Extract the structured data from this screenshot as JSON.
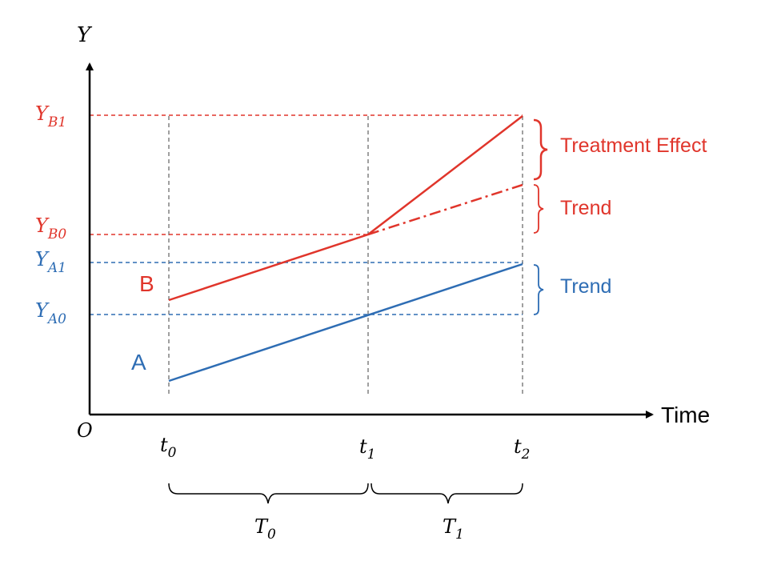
{
  "colors": {
    "group_a": "#2e6db4",
    "group_b": "#e0352b",
    "axis": "#000000",
    "guide": "#808080"
  },
  "axes": {
    "y_label": "Y",
    "x_label": "Time",
    "origin_label": "O"
  },
  "y_levels": {
    "yb1": {
      "base": "Y",
      "sub": "B1"
    },
    "yb0": {
      "base": "Y",
      "sub": "B0"
    },
    "ya1": {
      "base": "Y",
      "sub": "A1"
    },
    "ya0": {
      "base": "Y",
      "sub": "A0"
    }
  },
  "time_points": [
    {
      "base": "t",
      "sub": "0"
    },
    {
      "base": "t",
      "sub": "1"
    },
    {
      "base": "t",
      "sub": "2"
    }
  ],
  "periods": [
    {
      "base": "T",
      "sub": "0"
    },
    {
      "base": "T",
      "sub": "1"
    }
  ],
  "groups": {
    "a": "A",
    "b": "B"
  },
  "braces": {
    "treatment_effect": "Treatment Effect",
    "trend_b": "Trend",
    "trend_a": "Trend"
  }
}
